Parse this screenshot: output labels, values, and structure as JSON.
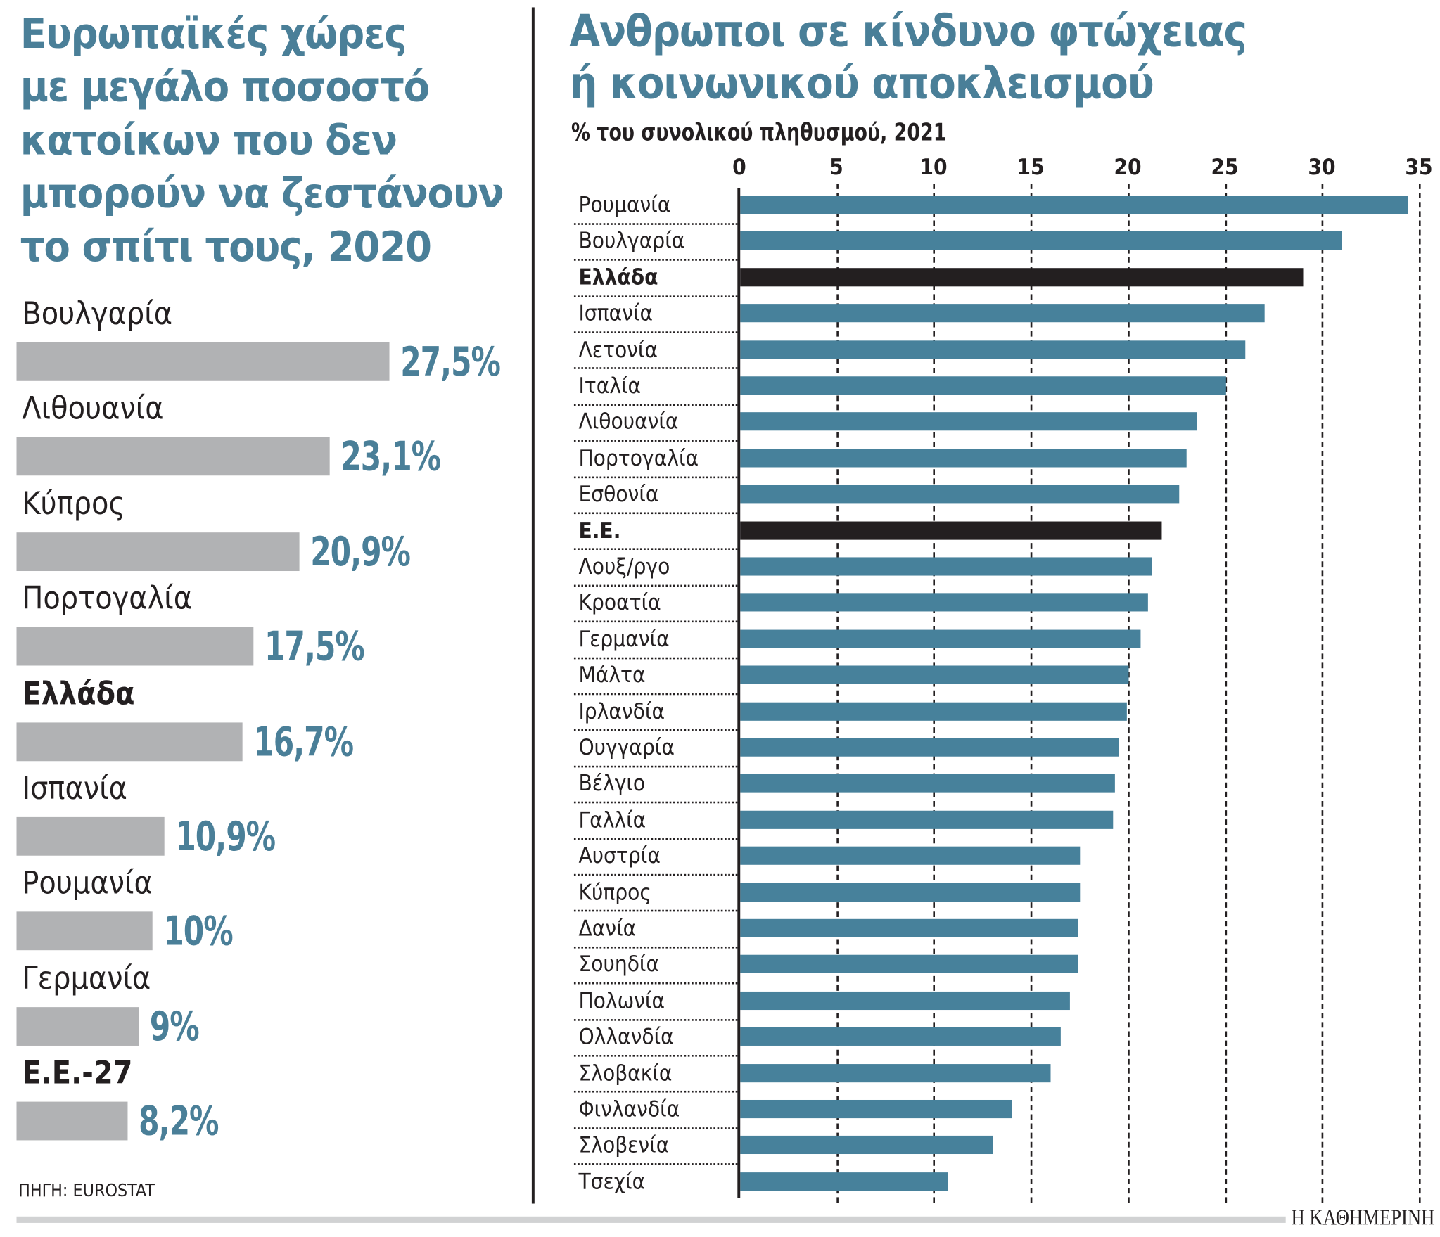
{
  "chart_data": [
    {
      "type": "bar",
      "orientation": "horizontal",
      "title": "Ευρωπαϊκές χώρες με μεγάλο ποσοστό κατοίκων που δεν μπορούν να ζεστάνουν το σπίτι τους, 2020",
      "categories": [
        "Βουλγαρία",
        "Λιθουανία",
        "Κύπρος",
        "Πορτογαλία",
        "Ελλάδα",
        "Ισπανία",
        "Ρουμανία",
        "Γερμανία",
        "Ε.Ε.-27"
      ],
      "values": [
        27.5,
        23.1,
        20.9,
        17.5,
        16.7,
        10.9,
        10,
        9,
        8.2
      ],
      "data_labels": [
        "27,5%",
        "23,1%",
        "20,9%",
        "17,5%",
        "16,7%",
        "10,9%",
        "10%",
        "9%",
        "8,2%"
      ],
      "highlighted": [
        "Ελλάδα",
        "Ε.Ε.-27"
      ],
      "colors": {
        "bar": "#b1b2b4",
        "label": "#4a7f98"
      },
      "source": "ΠΗΓΗ: EUROSTAT"
    },
    {
      "type": "bar",
      "orientation": "horizontal",
      "title": "Ανθρωποι σε κίνδυνο φτώχειας ή κοινωνικού αποκλεισμού",
      "subtitle": "% του συνολικού πληθυσμού, 2021",
      "xlim": [
        0,
        35
      ],
      "xticks": [
        "0",
        "5",
        "10",
        "15",
        "20",
        "25",
        "30",
        "35"
      ],
      "grid": true,
      "categories": [
        "Ρουμανία",
        "Βουλγαρία",
        "Ελλάδα",
        "Ισπανία",
        "Λετονία",
        "Ιταλία",
        "Λιθουανία",
        "Πορτογαλία",
        "Εσθονία",
        "Ε.Ε.",
        "Λουξ/ργο",
        "Κροατία",
        "Γερμανία",
        "Μάλτα",
        "Ιρλανδία",
        "Ουγγαρία",
        "Βέλγιο",
        "Γαλλία",
        "Αυστρία",
        "Κύπρος",
        "Δανία",
        "Σουηδία",
        "Πολωνία",
        "Ολλανδία",
        "Σλοβακία",
        "Φινλανδία",
        "Σλοβενία",
        "Τσεχία"
      ],
      "values": [
        34.4,
        31.0,
        29.0,
        27.0,
        26.0,
        25.0,
        23.5,
        23.0,
        22.6,
        21.7,
        21.2,
        21.0,
        20.6,
        20.0,
        19.9,
        19.5,
        19.3,
        19.2,
        17.5,
        17.5,
        17.4,
        17.4,
        17.0,
        16.5,
        16.0,
        14.0,
        13.0,
        10.7
      ],
      "highlighted": [
        "Ελλάδα",
        "Ε.Ε."
      ],
      "colors": {
        "bar": "#47819b",
        "highlight": "#231f20"
      }
    }
  ],
  "left": {
    "title_lines": [
      "Ευρωπαϊκές χώρες",
      "με μεγάλο ποσοστό",
      "κατοίκων που δεν",
      "μπορούν να ζεστάνουν",
      "το σπίτι τους, 2020"
    ]
  },
  "right": {
    "title_lines": [
      "Ανθρωποι σε κίνδυνο φτώχειας",
      "ή κοινωνικού αποκλεισμού"
    ]
  },
  "footer": {
    "logo": "Η ΚΑΘΗΜΕΡΙΝΗ"
  }
}
